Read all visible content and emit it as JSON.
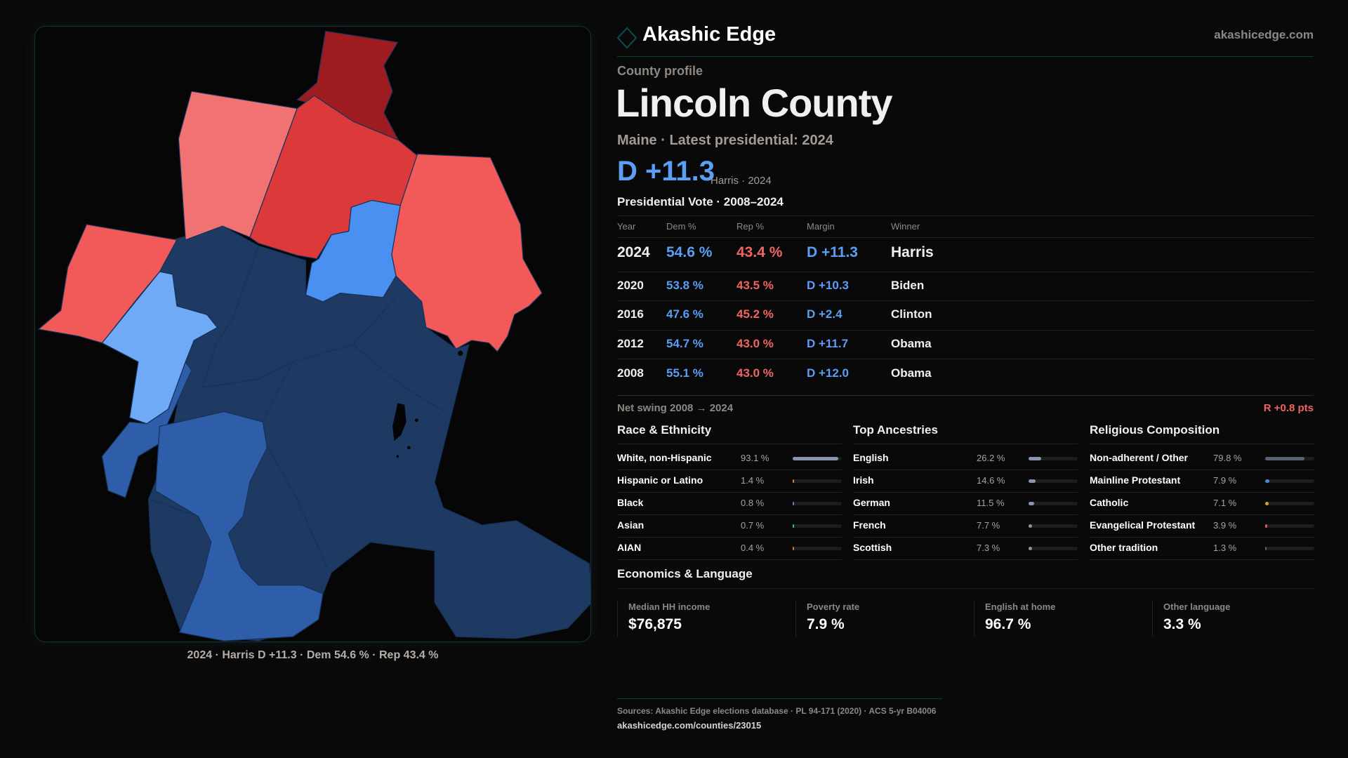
{
  "brand": {
    "name": "Akashic Edge",
    "site": "akashicedge.com"
  },
  "profile": {
    "kicker": "County profile",
    "title": "Lincoln County",
    "subtitle": "Maine · Latest presidential: 2024",
    "margin": "D +11.3",
    "margin_note": "Harris · 2024"
  },
  "votes": {
    "title": "Presidential Vote · 2008–2024",
    "headers": [
      "Year",
      "Dem %",
      "Rep %",
      "Margin",
      "Winner"
    ],
    "rows": [
      {
        "year": "2024",
        "dem": "54.6 %",
        "rep": "43.4 %",
        "margin": "D +11.3",
        "winner": "Harris"
      },
      {
        "year": "2020",
        "dem": "53.8 %",
        "rep": "43.5 %",
        "margin": "D +10.3",
        "winner": "Biden"
      },
      {
        "year": "2016",
        "dem": "47.6 %",
        "rep": "45.2 %",
        "margin": "D +2.4",
        "winner": "Clinton"
      },
      {
        "year": "2012",
        "dem": "54.7 %",
        "rep": "43.0 %",
        "margin": "D +11.7",
        "winner": "Obama"
      },
      {
        "year": "2008",
        "dem": "55.1 %",
        "rep": "43.0 %",
        "margin": "D +12.0",
        "winner": "Obama"
      }
    ],
    "swing_label": "Net swing 2008 → 2024",
    "swing_value": "R +0.8 pts"
  },
  "sections": [
    {
      "title": "Race & Ethnicity",
      "items": [
        {
          "label": "White, non-Hispanic",
          "value": "93.1 %",
          "pct": 93.1,
          "color": "#8796ab"
        },
        {
          "label": "Hispanic or Latino",
          "value": "1.4 %",
          "pct": 1.4,
          "color": "#d7892a"
        },
        {
          "label": "Black",
          "value": "0.8 %",
          "pct": 0.8,
          "color": "#8b6bd6"
        },
        {
          "label": "Asian",
          "value": "0.7 %",
          "pct": 0.7,
          "color": "#2fc58e"
        },
        {
          "label": "AIAN",
          "value": "0.4 %",
          "pct": 0.4,
          "color": "#d07a2a"
        }
      ]
    },
    {
      "title": "Top Ancestries",
      "items": [
        {
          "label": "English",
          "value": "26.2 %",
          "pct": 26.2,
          "color": "#8796ab"
        },
        {
          "label": "Irish",
          "value": "14.6 %",
          "pct": 14.6,
          "color": "#8796ab"
        },
        {
          "label": "German",
          "value": "11.5 %",
          "pct": 11.5,
          "color": "#8796ab"
        },
        {
          "label": "French",
          "value": "7.7 %",
          "pct": 7.7,
          "color": "#8796ab"
        },
        {
          "label": "Scottish",
          "value": "7.3 %",
          "pct": 7.3,
          "color": "#8796ab"
        }
      ]
    },
    {
      "title": "Religious Composition",
      "items": [
        {
          "label": "Non-adherent / Other",
          "value": "79.8 %",
          "pct": 79.8,
          "color": "#5b6072"
        },
        {
          "label": "Mainline Protestant",
          "value": "7.9 %",
          "pct": 7.9,
          "color": "#4d86dc"
        },
        {
          "label": "Catholic",
          "value": "7.1 %",
          "pct": 7.1,
          "color": "#d6a322"
        },
        {
          "label": "Evangelical Protestant",
          "value": "3.9 %",
          "pct": 3.9,
          "color": "#db5a5a"
        },
        {
          "label": "Other tradition",
          "value": "1.3 %",
          "pct": 1.3,
          "color": "#5e5e6a"
        }
      ]
    }
  ],
  "economics": {
    "title": "Economics & Language",
    "stats": [
      {
        "label": "Median HH income",
        "value": "$76,875"
      },
      {
        "label": "Poverty rate",
        "value": "7.9 %"
      },
      {
        "label": "English at home",
        "value": "96.7 %"
      },
      {
        "label": "Other language",
        "value": "3.3 %"
      }
    ]
  },
  "footer": {
    "sources": "Sources: Akashic Edge elections database · PL 94-171 (2020) · ACS 5-yr B04006",
    "url": "akashicedge.com/counties/23015"
  },
  "map": {
    "caption": "2024 · Harris D +11.3 · Dem 54.6 % · Rep 43.4 %",
    "colors": {
      "strong_rep": "#9e1b1f",
      "rep": "#dc3a3a",
      "lean_rep": "#f25a5a",
      "tilt_rep": "#f07272",
      "dem": "#4a90f0",
      "lean_dem": "#70a9f5",
      "mid_dem": "#2e5eaa",
      "safe_dem": "#1e3962"
    }
  }
}
